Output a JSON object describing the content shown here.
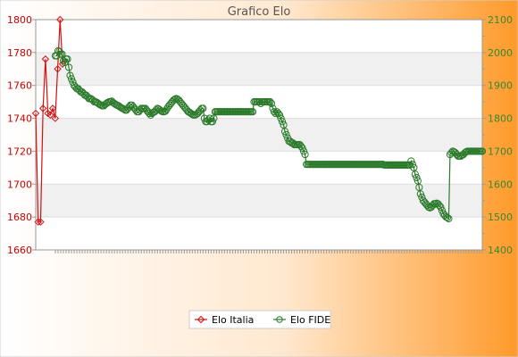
{
  "chart_data": {
    "type": "line",
    "title": "Grafico Elo",
    "left_axis": {
      "min": 1660,
      "max": 1800,
      "ticks": [
        1660,
        1680,
        1700,
        1720,
        1740,
        1760,
        1780,
        1800
      ],
      "color": "#cc0000"
    },
    "right_axis": {
      "min": 1400,
      "max": 2100,
      "ticks": [
        1400,
        1500,
        1600,
        1700,
        1800,
        1900,
        2000,
        2100
      ],
      "color": "#338833"
    },
    "grid": true,
    "legend_position": "bottom-center",
    "series": [
      {
        "name": "Elo Italia",
        "axis": "left",
        "color": "#d11111",
        "values": [
          1743,
          1677,
          1677,
          1746,
          1776,
          1743,
          1742,
          1746,
          1740,
          1770,
          1800,
          1773
        ]
      },
      {
        "name": "Elo FIDE",
        "axis": "right",
        "color": "#2a7a2a",
        "values": [
          1990,
          1990,
          2005,
          2003,
          1995,
          1995,
          1975,
          1970,
          1980,
          1980,
          1955,
          1930,
          1920,
          1910,
          1900,
          1895,
          1890,
          1890,
          1885,
          1880,
          1880,
          1875,
          1870,
          1870,
          1865,
          1860,
          1860,
          1858,
          1855,
          1850,
          1850,
          1848,
          1845,
          1842,
          1840,
          1838,
          1838,
          1842,
          1845,
          1848,
          1850,
          1850,
          1852,
          1848,
          1845,
          1842,
          1840,
          1838,
          1835,
          1832,
          1830,
          1828,
          1825,
          1825,
          1830,
          1835,
          1840,
          1840,
          1835,
          1830,
          1825,
          1820,
          1820,
          1825,
          1830,
          1830,
          1830,
          1830,
          1825,
          1820,
          1815,
          1810,
          1815,
          1818,
          1820,
          1825,
          1830,
          1828,
          1825,
          1822,
          1820,
          1820,
          1822,
          1828,
          1835,
          1840,
          1845,
          1850,
          1855,
          1858,
          1860,
          1858,
          1855,
          1850,
          1845,
          1840,
          1835,
          1830,
          1825,
          1820,
          1818,
          1815,
          1812,
          1810,
          1810,
          1812,
          1815,
          1820,
          1825,
          1830,
          1830,
          1800,
          1790,
          1790,
          1795,
          1800,
          1790,
          1790,
          1800,
          1820,
          1820,
          1820,
          1820,
          1820,
          1820,
          1820,
          1820,
          1820,
          1820,
          1820,
          1820,
          1820,
          1820,
          1820,
          1820,
          1820,
          1820,
          1820,
          1820,
          1820,
          1820,
          1820,
          1820,
          1820,
          1820,
          1820,
          1820,
          1820,
          1850,
          1850,
          1850,
          1850,
          1850,
          1845,
          1850,
          1850,
          1850,
          1850,
          1850,
          1850,
          1850,
          1845,
          1830,
          1820,
          1815,
          1820,
          1815,
          1810,
          1800,
          1790,
          1780,
          1760,
          1750,
          1740,
          1730,
          1730,
          1725,
          1725,
          1720,
          1720,
          1720,
          1720,
          1720,
          1715,
          1710,
          1700,
          1690,
          1660,
          1660,
          1660,
          1660,
          1660,
          1660,
          1660,
          1660,
          1660,
          1660,
          1660,
          1660,
          1660,
          1660,
          1660,
          1660,
          1660,
          1660,
          1660,
          1660,
          1660,
          1660,
          1660,
          1660,
          1660,
          1660,
          1660,
          1660,
          1660,
          1660,
          1660,
          1660,
          1660,
          1660,
          1660,
          1660,
          1660,
          1660,
          1660,
          1660,
          1660,
          1660,
          1660,
          1660,
          1660,
          1660,
          1660,
          1660,
          1660,
          1660,
          1660,
          1660,
          1660,
          1660,
          1660,
          1660,
          1660,
          1660,
          1658,
          1658,
          1658,
          1658,
          1658,
          1658,
          1658,
          1658,
          1658,
          1658,
          1658,
          1658,
          1658,
          1658,
          1658,
          1658,
          1658,
          1658,
          1658,
          1658,
          1670,
          1660,
          1650,
          1630,
          1620,
          1610,
          1590,
          1570,
          1560,
          1550,
          1545,
          1540,
          1535,
          1530,
          1528,
          1530,
          1535,
          1540,
          1540,
          1542,
          1540,
          1535,
          1530,
          1520,
          1510,
          1505,
          1500,
          1498,
          1495,
          1690,
          1695,
          1700,
          1698,
          1695,
          1690,
          1685,
          1685,
          1685,
          1688,
          1690,
          1695,
          1698,
          1700,
          1700,
          1700,
          1700,
          1700,
          1700,
          1700,
          1700,
          1700,
          1700,
          1700,
          1700
        ]
      }
    ]
  }
}
